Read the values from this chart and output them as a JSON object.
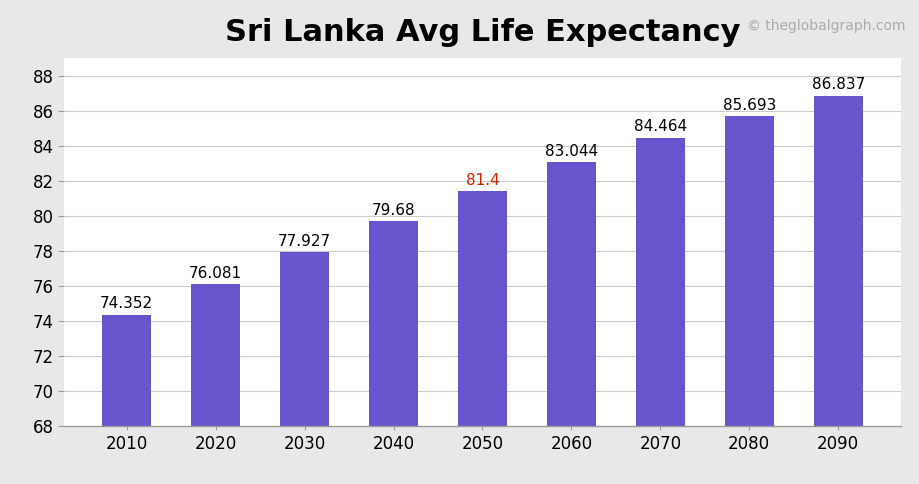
{
  "title": "Sri Lanka Avg Life Expectancy",
  "watermark": "© theglobalgraph.com",
  "categories": [
    2010,
    2020,
    2030,
    2040,
    2050,
    2060,
    2070,
    2080,
    2090
  ],
  "values": [
    74.352,
    76.081,
    77.927,
    79.68,
    81.4,
    83.044,
    84.464,
    85.693,
    86.837
  ],
  "bar_color": "#6655cc",
  "label_color_default": "#000000",
  "label_color_2050": "#cc2200",
  "ylim": [
    68,
    89
  ],
  "yticks": [
    68,
    70,
    72,
    74,
    76,
    78,
    80,
    82,
    84,
    86,
    88
  ],
  "grid_yticks": [
    70,
    72,
    74,
    76,
    78,
    80,
    82,
    84,
    86,
    88
  ],
  "background_color": "#ffffff",
  "outer_background": "#e8e8e8",
  "title_fontsize": 22,
  "tick_fontsize": 12,
  "label_fontsize": 11,
  "watermark_fontsize": 10,
  "bar_width": 0.55
}
